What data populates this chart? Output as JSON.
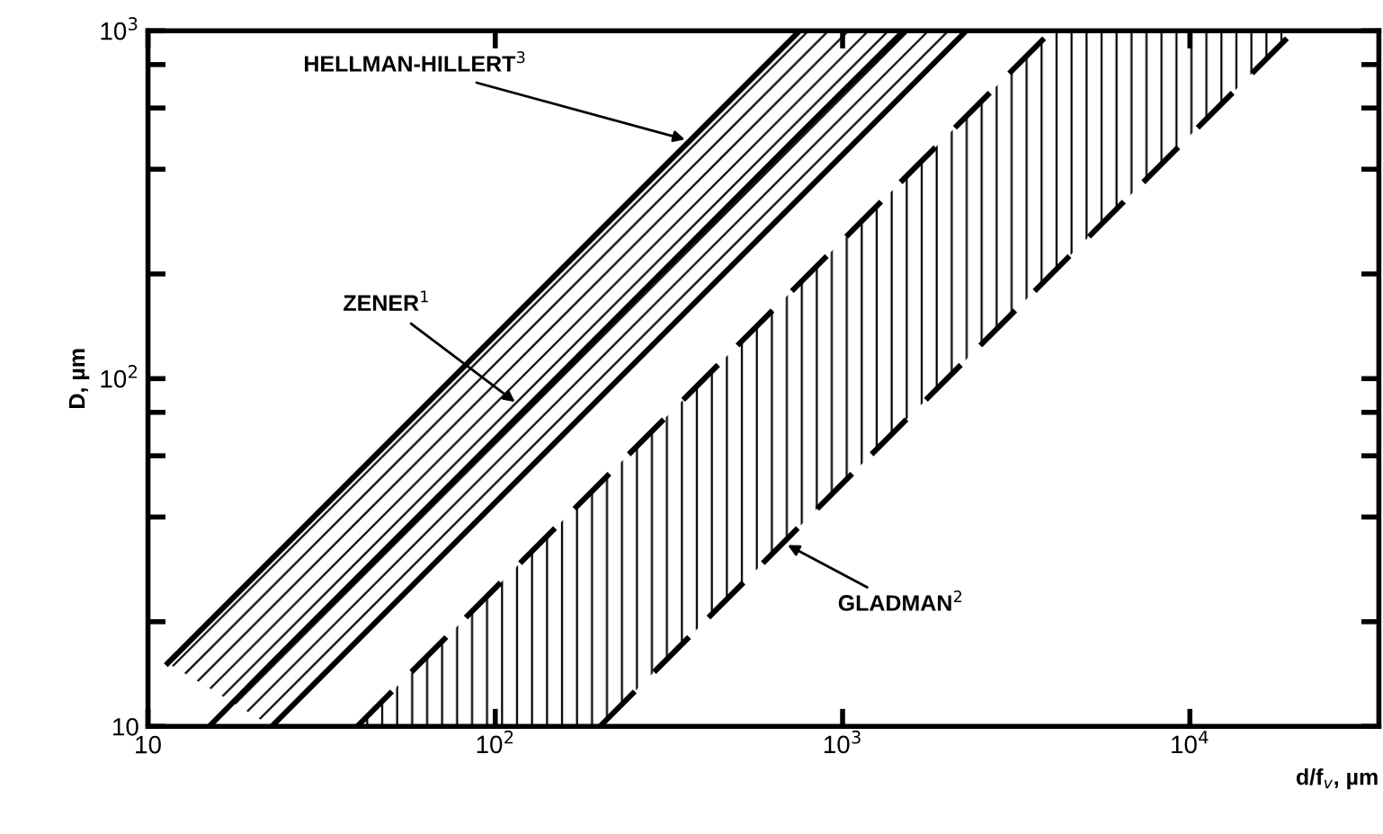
{
  "chart_data": {
    "type": "line",
    "xlabel": "d/f$_{v}$, µm",
    "ylabel": "D, µm",
    "log": "xy",
    "grid": false,
    "xlim": [
      10,
      35000
    ],
    "ylim": [
      10,
      1000
    ],
    "xticks": [
      10,
      {
        "value": 100,
        "label": "10$^{2}$"
      },
      {
        "value": 1000,
        "label": "10$^{3}$"
      },
      {
        "value": 10000,
        "label": "10$^{4}$"
      }
    ],
    "yticks": [
      10,
      {
        "value": 20,
        "label": null
      },
      {
        "value": 40,
        "label": null
      },
      {
        "value": 60,
        "label": null
      },
      {
        "value": 80,
        "label": null
      },
      {
        "value": 100,
        "label": "10$^{2}$"
      },
      {
        "value": 200,
        "label": null
      },
      {
        "value": 400,
        "label": null
      },
      {
        "value": 600,
        "label": null
      },
      {
        "value": 800,
        "label": null
      },
      {
        "value": 1000,
        "label": "10$^{3}$"
      }
    ],
    "series": [
      {
        "color": "#000000",
        "line_style": "solid",
        "x": [
          11.4,
          752
        ],
        "values": [
          15.2,
          1000
        ]
      },
      {
        "color": "#000000",
        "line_style": "solid",
        "x": [
          11.4,
          15,
          22.7,
          752,
          1500,
          2270
        ],
        "values": [
          null,
          10,
          15.2,
          504,
          1000,
          null
        ],
        "lower": [
          15.2,
          12.9,
          10,
          331,
          660,
          1000
        ],
        "upper": [
          15.2,
          20,
          30.2,
          1000,
          1000,
          1000
        ]
      },
      {
        "color": "#000000",
        "line_style": "solid",
        "x": [
          22.7,
          2270
        ],
        "values": [
          10,
          1000
        ]
      },
      {
        "color": "#000000",
        "line_style": "dashed",
        "x": [
          40,
          200,
          4000,
          20000
        ],
        "values": [
          10,
          50,
          1000,
          null
        ],
        "lower": [
          10,
          10,
          200,
          1000
        ],
        "upper": [
          10,
          50,
          1000,
          1000
        ]
      },
      {
        "color": "#000000",
        "line_style": "dashed",
        "x": [
          200,
          20000
        ],
        "values": [
          10,
          1000
        ]
      }
    ],
    "annotations": [
      {
        "text": "HELLMAN-HILLERT$^{3}$",
        "x": 363,
        "y": 483
      },
      {
        "text": "ZENER$^{1}$",
        "x": 117,
        "y": 84
      },
      {
        "text": "GLADMAN$^{2}$",
        "x": 675,
        "y": 33.75
      }
    ]
  }
}
